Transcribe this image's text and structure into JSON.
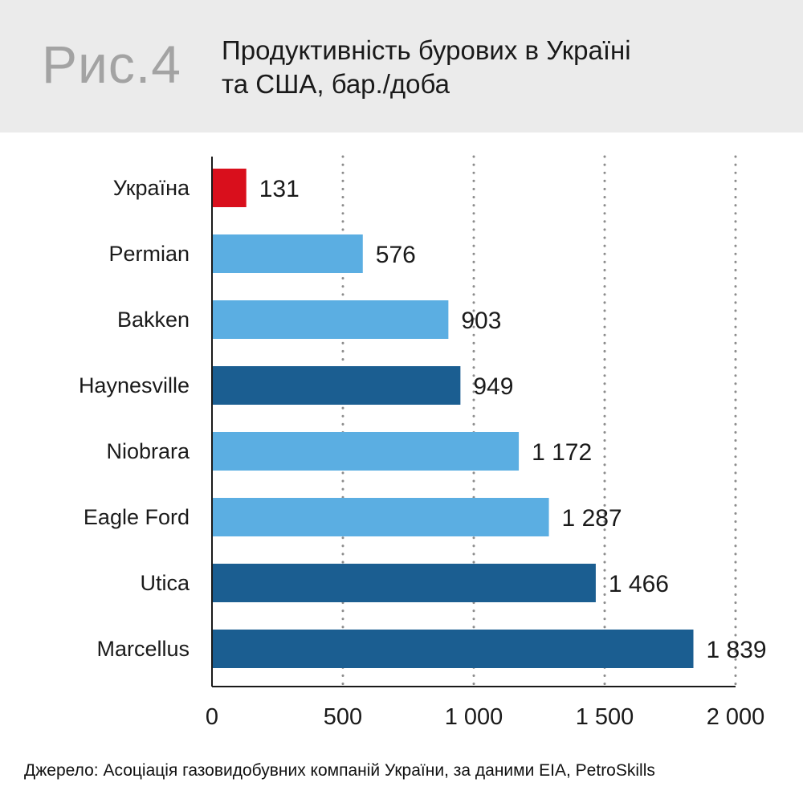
{
  "figure": {
    "label": "Рис.4",
    "title_line1": "Продуктивність бурових в Україні",
    "title_line2": "та США, бар./доба"
  },
  "source": "Джерело: Асоціація газовидобувних компаній України, за даними EIA, PetroSkills",
  "chart_data": {
    "type": "bar",
    "orientation": "horizontal",
    "categories": [
      "Україна",
      "Permian",
      "Bakken",
      "Haynesville",
      "Niobrara",
      "Eagle Ford",
      "Utica",
      "Marcellus"
    ],
    "values": [
      131,
      576,
      903,
      949,
      1172,
      1287,
      1466,
      1839
    ],
    "value_labels": [
      "131",
      "576",
      "903",
      "949",
      "1 172",
      "1 287",
      "1 466",
      "1 839"
    ],
    "bar_colors": [
      "#d90f1c",
      "#5baee2",
      "#5baee2",
      "#1b5e91",
      "#5baee2",
      "#5baee2",
      "#1b5e91",
      "#1b5e91"
    ],
    "xlim": [
      0,
      2000
    ],
    "xticks": [
      0,
      500,
      1000,
      1500,
      2000
    ],
    "xtick_labels": [
      "0",
      "500",
      "1 000",
      "1 500",
      "2 000"
    ],
    "grid": "vertical dotted",
    "title": "Продуктивність бурових в Україні та США, бар./доба"
  }
}
